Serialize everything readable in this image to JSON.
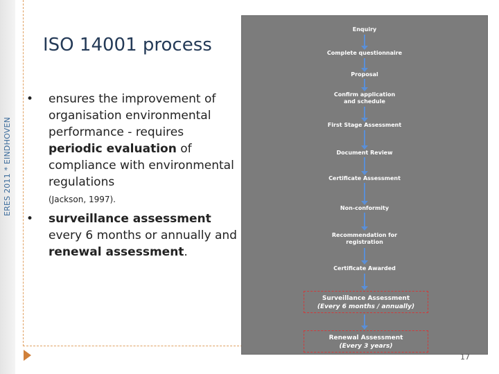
{
  "sidebar_text": "ERES 2011 * EINDHOVEN",
  "title": "ISO 14001 process",
  "bullets": [
    {
      "marker": "•",
      "part1": "ensures the improvement of organisation environmental performance - requires ",
      "bold": "periodic evaluation",
      "part2": " of compliance with environmental regulations",
      "citation": "(Jackson, 1997)."
    },
    {
      "marker": "•",
      "bold1": "surveillance assessment",
      "part1": " every 6 months or annually and ",
      "bold2": "renewal assessment",
      "part2": "."
    }
  ],
  "flowchart": {
    "steps": [
      "Enquiry",
      "Complete questionnaire",
      "Proposal",
      "Confirm application and schedule",
      "First Stage Assessment",
      "Document Review",
      "Certificate Assessment",
      "Non-conformity",
      "Recommendation for registration",
      "Certificate Awarded"
    ],
    "surveillance": {
      "label": "Surveillance Assessment",
      "sub": "(Every 6 months / annually)"
    },
    "renewal": {
      "label": "Renewal Assessment",
      "sub": "(Every 3 years)"
    }
  },
  "page_number": "17"
}
